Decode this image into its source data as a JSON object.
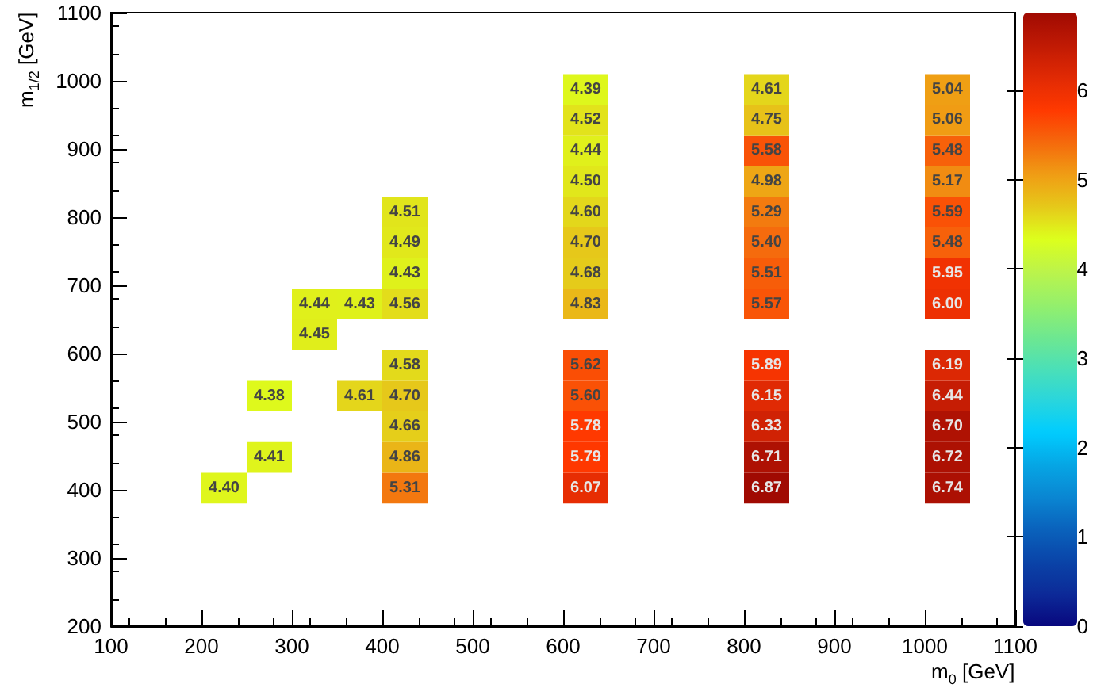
{
  "chart_data": {
    "type": "scatter",
    "xlabel": "m$_{0}$ [GeV]",
    "ylabel": "m$_{1/2}$ [GeV]",
    "marker": "square",
    "grid": false,
    "xlim": [
      100,
      1100
    ],
    "xticks": [
      100,
      200,
      300,
      400,
      500,
      600,
      700,
      800,
      900,
      1000,
      1100
    ],
    "ylim": [
      200,
      1100
    ],
    "yticks": [
      200,
      300,
      400,
      500,
      600,
      700,
      800,
      900,
      1000,
      1100
    ],
    "clim": [
      0,
      6.87
    ],
    "cticks": [
      0,
      1,
      2,
      3,
      4,
      5,
      6
    ],
    "x": [
      225,
      275,
      275,
      325,
      325,
      375,
      375,
      425,
      425,
      425,
      425,
      425,
      425,
      425,
      425,
      425,
      625,
      625,
      625,
      625,
      625,
      625,
      625,
      625,
      625,
      625,
      625,
      625,
      625,
      825,
      825,
      825,
      825,
      825,
      825,
      825,
      825,
      825,
      825,
      825,
      825,
      825,
      1025,
      1025,
      1025,
      1025,
      1025,
      1025,
      1025,
      1025,
      1025,
      1025,
      1025,
      1025,
      1025
    ],
    "values": [
      402.5,
      447.5,
      537.5,
      627.5,
      672.5,
      537.5,
      672.5,
      402.5,
      447.5,
      492.5,
      537.5,
      582.5,
      672.5,
      717.5,
      762.5,
      807.5,
      402.5,
      447.5,
      492.5,
      537.5,
      582.5,
      672.5,
      717.5,
      762.5,
      807.5,
      852.5,
      897.5,
      942.5,
      987.5,
      402.5,
      447.5,
      492.5,
      537.5,
      582.5,
      672.5,
      717.5,
      762.5,
      807.5,
      852.5,
      897.5,
      942.5,
      987.5,
      402.5,
      447.5,
      492.5,
      537.5,
      582.5,
      672.5,
      717.5,
      762.5,
      807.5,
      852.5,
      897.5,
      942.5,
      987.5
    ],
    "cvalues": [
      4.4,
      4.41,
      4.38,
      4.45,
      4.44,
      4.61,
      4.43,
      5.31,
      4.86,
      4.66,
      4.7,
      4.58,
      4.56,
      4.43,
      4.49,
      4.51,
      6.07,
      5.79,
      5.78,
      5.6,
      5.62,
      4.83,
      4.68,
      4.7,
      4.6,
      4.5,
      4.44,
      4.52,
      4.39,
      6.87,
      6.71,
      6.33,
      6.15,
      5.89,
      5.57,
      5.51,
      5.4,
      5.29,
      4.98,
      5.58,
      4.75,
      4.61,
      6.74,
      6.72,
      6.7,
      6.44,
      6.19,
      6.0,
      5.95,
      5.48,
      5.59,
      5.17,
      5.48,
      5.06,
      5.04
    ],
    "annotations": [
      {
        "text": "4.40",
        "x": 225,
        "y": 402.5
      },
      {
        "text": "4.41",
        "x": 275,
        "y": 447.5
      },
      {
        "text": "4.38",
        "x": 275,
        "y": 537.5
      },
      {
        "text": "4.45",
        "x": 325,
        "y": 627.5
      },
      {
        "text": "4.44",
        "x": 325,
        "y": 672.5
      },
      {
        "text": "4.61",
        "x": 375,
        "y": 537.5
      },
      {
        "text": "4.43",
        "x": 375,
        "y": 672.5
      },
      {
        "text": "5.31",
        "x": 425,
        "y": 402.5
      },
      {
        "text": "4.86",
        "x": 425,
        "y": 447.5
      },
      {
        "text": "4.66",
        "x": 425,
        "y": 492.5
      },
      {
        "text": "4.70",
        "x": 425,
        "y": 537.5
      },
      {
        "text": "4.58",
        "x": 425,
        "y": 582.5
      },
      {
        "text": "4.56",
        "x": 425,
        "y": 672.5
      },
      {
        "text": "4.43",
        "x": 425,
        "y": 717.5
      },
      {
        "text": "4.49",
        "x": 425,
        "y": 762.5
      },
      {
        "text": "4.51",
        "x": 425,
        "y": 807.5
      },
      {
        "text": "6.07",
        "x": 625,
        "y": 402.5
      },
      {
        "text": "5.79",
        "x": 625,
        "y": 447.5
      },
      {
        "text": "5.78",
        "x": 625,
        "y": 492.5
      },
      {
        "text": "5.60",
        "x": 625,
        "y": 537.5
      },
      {
        "text": "5.62",
        "x": 625,
        "y": 582.5
      },
      {
        "text": "4.83",
        "x": 625,
        "y": 672.5
      },
      {
        "text": "4.68",
        "x": 625,
        "y": 717.5
      },
      {
        "text": "4.70",
        "x": 625,
        "y": 762.5
      },
      {
        "text": "4.60",
        "x": 625,
        "y": 807.5
      },
      {
        "text": "4.50",
        "x": 625,
        "y": 852.5
      },
      {
        "text": "4.44",
        "x": 625,
        "y": 897.5
      },
      {
        "text": "4.52",
        "x": 625,
        "y": 942.5
      },
      {
        "text": "4.39",
        "x": 625,
        "y": 987.5
      },
      {
        "text": "6.87",
        "x": 825,
        "y": 402.5
      },
      {
        "text": "6.71",
        "x": 825,
        "y": 447.5
      },
      {
        "text": "6.33",
        "x": 825,
        "y": 492.5
      },
      {
        "text": "6.15",
        "x": 825,
        "y": 537.5
      },
      {
        "text": "5.89",
        "x": 825,
        "y": 582.5
      },
      {
        "text": "5.57",
        "x": 825,
        "y": 672.5
      },
      {
        "text": "5.51",
        "x": 825,
        "y": 717.5
      },
      {
        "text": "5.40",
        "x": 825,
        "y": 762.5
      },
      {
        "text": "5.29",
        "x": 825,
        "y": 807.5
      },
      {
        "text": "4.98",
        "x": 825,
        "y": 852.5
      },
      {
        "text": "5.58",
        "x": 825,
        "y": 897.5
      },
      {
        "text": "4.75",
        "x": 825,
        "y": 942.5
      },
      {
        "text": "4.61",
        "x": 825,
        "y": 987.5
      },
      {
        "text": "6.74",
        "x": 1025,
        "y": 402.5
      },
      {
        "text": "6.72",
        "x": 1025,
        "y": 447.5
      },
      {
        "text": "6.70",
        "x": 1025,
        "y": 492.5
      },
      {
        "text": "6.44",
        "x": 1025,
        "y": 537.5
      },
      {
        "text": "6.19",
        "x": 1025,
        "y": 582.5
      },
      {
        "text": "6.00",
        "x": 1025,
        "y": 672.5
      },
      {
        "text": "5.95",
        "x": 1025,
        "y": 717.5
      },
      {
        "text": "5.48",
        "x": 1025,
        "y": 762.5
      },
      {
        "text": "5.59",
        "x": 1025,
        "y": 807.5
      },
      {
        "text": "5.17",
        "x": 1025,
        "y": 852.5
      },
      {
        "text": "5.48",
        "x": 1025,
        "y": 897.5
      },
      {
        "text": "5.06",
        "x": 1025,
        "y": 942.5
      },
      {
        "text": "5.04",
        "x": 1025,
        "y": 987.5
      }
    ]
  }
}
